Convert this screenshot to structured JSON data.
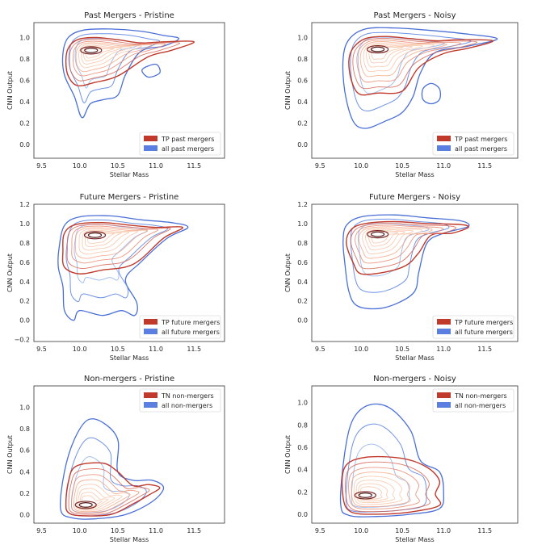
{
  "colors": {
    "tp_red": "#c0392b",
    "all_blue": "#5b7fe0",
    "red_levels": [
      "#b2182b",
      "#d6604d",
      "#e8866c",
      "#f4a582",
      "#f7c4a8"
    ],
    "blue_levels": [
      "#4a6fd6",
      "#6f93e6",
      "#a3bff0"
    ],
    "center_dark": "#4d1a1a"
  },
  "chart_data": [
    {
      "type": "contour",
      "title": "Past Mergers - Pristine",
      "xlabel": "Stellar Mass",
      "ylabel": "CNN Output",
      "xlim": [
        9.4,
        11.9
      ],
      "ylim": [
        -0.13,
        1.14
      ],
      "xticks": [
        "9.5",
        "10.0",
        "10.5",
        "11.0",
        "11.5"
      ],
      "xtick_values": [
        9.5,
        10.0,
        10.5,
        11.0,
        11.5
      ],
      "yticks": [
        "0.0",
        "0.2",
        "0.4",
        "0.6",
        "0.8",
        "1.0"
      ],
      "ytick_values": [
        0.0,
        0.2,
        0.4,
        0.6,
        0.8,
        1.0
      ],
      "legend_position": "lower-right",
      "legend": [
        "TP past mergers",
        "all past mergers"
      ],
      "peak": {
        "x": 10.15,
        "y": 0.88
      },
      "red_outer": [
        [
          9.82,
          0.78
        ],
        [
          9.85,
          0.9
        ],
        [
          9.97,
          0.98
        ],
        [
          10.2,
          1.0
        ],
        [
          10.5,
          0.98
        ],
        [
          10.8,
          0.95
        ],
        [
          11.1,
          0.96
        ],
        [
          11.5,
          0.96
        ],
        [
          11.2,
          0.88
        ],
        [
          10.9,
          0.82
        ],
        [
          10.5,
          0.64
        ],
        [
          10.2,
          0.58
        ],
        [
          9.97,
          0.55
        ],
        [
          9.85,
          0.64
        ]
      ],
      "blue_outer": [
        [
          9.78,
          0.85
        ],
        [
          9.85,
          1.0
        ],
        [
          10.05,
          1.07
        ],
        [
          10.4,
          1.08
        ],
        [
          10.8,
          1.06
        ],
        [
          11.1,
          1.02
        ],
        [
          11.3,
          0.99
        ],
        [
          11.1,
          0.92
        ],
        [
          10.8,
          0.87
        ],
        [
          10.6,
          0.65
        ],
        [
          10.5,
          0.46
        ],
        [
          10.32,
          0.42
        ],
        [
          10.14,
          0.38
        ],
        [
          10.03,
          0.25
        ],
        [
          9.93,
          0.45
        ],
        [
          9.8,
          0.65
        ]
      ],
      "blue_extra": [
        [
          11.0,
          0.75
        ],
        [
          11.05,
          0.67
        ],
        [
          10.9,
          0.63
        ],
        [
          10.82,
          0.7
        ]
      ]
    },
    {
      "type": "contour",
      "title": "Past Mergers - Noisy",
      "xlabel": "Stellar Mass",
      "ylabel": "CNN Output",
      "xlim": [
        9.4,
        11.9
      ],
      "ylim": [
        -0.13,
        1.14
      ],
      "xticks": [
        "9.5",
        "10.0",
        "10.5",
        "11.0",
        "11.5"
      ],
      "xtick_values": [
        9.5,
        10.0,
        10.5,
        11.0,
        11.5
      ],
      "yticks": [
        "0.0",
        "0.2",
        "0.4",
        "0.6",
        "0.8",
        "1.0"
      ],
      "ytick_values": [
        0.0,
        0.2,
        0.4,
        0.6,
        0.8,
        1.0
      ],
      "legend_position": "lower-right",
      "legend": [
        "TP past mergers",
        "all past mergers"
      ],
      "peak": {
        "x": 10.2,
        "y": 0.89
      },
      "red_outer": [
        [
          9.85,
          0.78
        ],
        [
          9.9,
          0.9
        ],
        [
          10.05,
          0.99
        ],
        [
          10.3,
          1.01
        ],
        [
          10.6,
          0.99
        ],
        [
          10.9,
          0.97
        ],
        [
          11.2,
          0.98
        ],
        [
          11.6,
          0.97
        ],
        [
          11.3,
          0.9
        ],
        [
          11.0,
          0.85
        ],
        [
          10.7,
          0.72
        ],
        [
          10.5,
          0.5
        ],
        [
          10.2,
          0.48
        ],
        [
          9.98,
          0.47
        ],
        [
          9.88,
          0.6
        ]
      ],
      "blue_outer": [
        [
          9.78,
          0.8
        ],
        [
          9.85,
          0.98
        ],
        [
          10.05,
          1.08
        ],
        [
          10.4,
          1.09
        ],
        [
          10.8,
          1.07
        ],
        [
          11.2,
          1.04
        ],
        [
          11.65,
          0.99
        ],
        [
          11.3,
          0.92
        ],
        [
          10.9,
          0.86
        ],
        [
          10.72,
          0.67
        ],
        [
          10.63,
          0.45
        ],
        [
          10.5,
          0.3
        ],
        [
          10.3,
          0.22
        ],
        [
          10.05,
          0.15
        ],
        [
          9.9,
          0.22
        ],
        [
          9.8,
          0.5
        ]
      ],
      "blue_extra": [
        [
          10.85,
          0.57
        ],
        [
          10.95,
          0.52
        ],
        [
          10.95,
          0.42
        ],
        [
          10.85,
          0.38
        ],
        [
          10.75,
          0.42
        ],
        [
          10.75,
          0.52
        ]
      ]
    },
    {
      "type": "contour",
      "title": "Future Mergers - Pristine",
      "xlabel": "Stellar Mass",
      "ylabel": "CNN Output",
      "xlim": [
        9.4,
        11.9
      ],
      "ylim": [
        -0.22,
        1.2
      ],
      "xticks": [
        "9.5",
        "10.0",
        "10.5",
        "11.0",
        "11.5"
      ],
      "xtick_values": [
        9.5,
        10.0,
        10.5,
        11.0,
        11.5
      ],
      "yticks": [
        "−0.2",
        "0.0",
        "0.2",
        "0.4",
        "0.6",
        "0.8",
        "1.0",
        "1.2"
      ],
      "ytick_values": [
        -0.2,
        0.0,
        0.2,
        0.4,
        0.6,
        0.8,
        1.0,
        1.2
      ],
      "legend_position": "lower-right",
      "legend": [
        "TP future mergers",
        "all future mergers"
      ],
      "peak": {
        "x": 10.2,
        "y": 0.88
      },
      "red_outer": [
        [
          9.78,
          0.72
        ],
        [
          9.8,
          0.9
        ],
        [
          9.95,
          0.99
        ],
        [
          10.3,
          1.01
        ],
        [
          10.7,
          0.98
        ],
        [
          11.0,
          0.96
        ],
        [
          11.35,
          0.96
        ],
        [
          11.1,
          0.85
        ],
        [
          10.8,
          0.63
        ],
        [
          10.6,
          0.55
        ],
        [
          10.3,
          0.52
        ],
        [
          10.0,
          0.48
        ],
        [
          9.8,
          0.55
        ]
      ],
      "blue_outer": [
        [
          9.73,
          0.75
        ],
        [
          9.8,
          0.98
        ],
        [
          10.0,
          1.07
        ],
        [
          10.4,
          1.08
        ],
        [
          10.8,
          1.04
        ],
        [
          11.2,
          1.01
        ],
        [
          11.42,
          0.96
        ],
        [
          11.15,
          0.85
        ],
        [
          10.8,
          0.6
        ],
        [
          10.6,
          0.42
        ],
        [
          10.75,
          0.18
        ],
        [
          10.72,
          0.05
        ],
        [
          10.55,
          0.1
        ],
        [
          10.3,
          0.05
        ],
        [
          10.0,
          0.1
        ],
        [
          9.92,
          0.0
        ],
        [
          9.8,
          0.1
        ],
        [
          9.78,
          0.35
        ],
        [
          9.72,
          0.55
        ]
      ],
      "blue_extra": []
    },
    {
      "type": "contour",
      "title": "Future Mergers - Noisy",
      "xlabel": "Stellar Mass",
      "ylabel": "CNN Output",
      "xlim": [
        9.4,
        11.9
      ],
      "ylim": [
        -0.22,
        1.2
      ],
      "xticks": [
        "9.5",
        "10.0",
        "10.5",
        "11.0",
        "11.5"
      ],
      "xtick_values": [
        9.5,
        10.0,
        10.5,
        11.0,
        11.5
      ],
      "yticks": [
        "0.0",
        "0.2",
        "0.4",
        "0.6",
        "0.8",
        "1.0",
        "1.2"
      ],
      "ytick_values": [
        0.0,
        0.2,
        0.4,
        0.6,
        0.8,
        1.0,
        1.2
      ],
      "legend_position": "lower-right",
      "legend": [
        "TP future mergers",
        "all future mergers"
      ],
      "peak": {
        "x": 10.2,
        "y": 0.89
      },
      "red_outer": [
        [
          9.82,
          0.8
        ],
        [
          9.88,
          0.94
        ],
        [
          10.05,
          1.0
        ],
        [
          10.4,
          1.02
        ],
        [
          10.8,
          1.0
        ],
        [
          11.2,
          0.99
        ],
        [
          11.3,
          0.96
        ],
        [
          11.1,
          0.9
        ],
        [
          10.85,
          0.88
        ],
        [
          10.7,
          0.7
        ],
        [
          10.55,
          0.57
        ],
        [
          10.3,
          0.5
        ],
        [
          10.0,
          0.48
        ],
        [
          9.9,
          0.6
        ]
      ],
      "blue_outer": [
        [
          9.78,
          0.82
        ],
        [
          9.82,
          0.98
        ],
        [
          10.0,
          1.07
        ],
        [
          10.4,
          1.09
        ],
        [
          10.8,
          1.06
        ],
        [
          11.2,
          1.03
        ],
        [
          11.3,
          0.97
        ],
        [
          11.0,
          0.9
        ],
        [
          10.8,
          0.8
        ],
        [
          10.7,
          0.5
        ],
        [
          10.65,
          0.3
        ],
        [
          10.45,
          0.18
        ],
        [
          10.2,
          0.12
        ],
        [
          9.95,
          0.15
        ],
        [
          9.85,
          0.3
        ],
        [
          9.8,
          0.6
        ]
      ],
      "blue_extra": []
    },
    {
      "type": "contour",
      "title": "Non-mergers - Pristine",
      "xlabel": "Stellar Mass",
      "ylabel": "CNN Output",
      "xlim": [
        9.4,
        11.9
      ],
      "ylim": [
        -0.08,
        1.2
      ],
      "xticks": [
        "9.5",
        "10.0",
        "10.5",
        "11.0",
        "11.5"
      ],
      "xtick_values": [
        9.5,
        10.0,
        10.5,
        11.0,
        11.5
      ],
      "yticks": [
        "0.0",
        "0.2",
        "0.4",
        "0.6",
        "0.8",
        "1.0"
      ],
      "ytick_values": [
        0.0,
        0.2,
        0.4,
        0.6,
        0.8,
        1.0
      ],
      "legend_position": "upper-right",
      "legend": [
        "TN non-mergers",
        "all non-mergers"
      ],
      "peak": {
        "x": 10.08,
        "y": 0.09
      },
      "red_outer": [
        [
          9.82,
          0.1
        ],
        [
          9.85,
          0.3
        ],
        [
          9.95,
          0.45
        ],
        [
          10.3,
          0.48
        ],
        [
          10.5,
          0.4
        ],
        [
          10.7,
          0.27
        ],
        [
          10.9,
          0.28
        ],
        [
          11.05,
          0.25
        ],
        [
          10.9,
          0.18
        ],
        [
          10.7,
          0.1
        ],
        [
          10.4,
          0.0
        ],
        [
          10.0,
          -0.01
        ],
        [
          9.85,
          0.02
        ]
      ],
      "blue_outer": [
        [
          9.75,
          0.05
        ],
        [
          9.8,
          0.4
        ],
        [
          9.93,
          0.7
        ],
        [
          10.1,
          0.88
        ],
        [
          10.3,
          0.86
        ],
        [
          10.5,
          0.7
        ],
        [
          10.5,
          0.4
        ],
        [
          10.7,
          0.32
        ],
        [
          10.95,
          0.32
        ],
        [
          11.1,
          0.25
        ],
        [
          10.95,
          0.12
        ],
        [
          10.6,
          0.0
        ],
        [
          10.2,
          -0.04
        ],
        [
          9.9,
          -0.03
        ]
      ],
      "blue_extra": []
    },
    {
      "type": "contour",
      "title": "Non-mergers - Noisy",
      "xlabel": "Stellar Mass",
      "ylabel": "CNN Output",
      "xlim": [
        9.4,
        11.9
      ],
      "ylim": [
        -0.08,
        1.15
      ],
      "xticks": [
        "9.5",
        "10.0",
        "10.5",
        "11.0",
        "11.5"
      ],
      "xtick_values": [
        9.5,
        10.0,
        10.5,
        11.0,
        11.5
      ],
      "yticks": [
        "0.0",
        "0.2",
        "0.4",
        "0.6",
        "0.8",
        "1.0"
      ],
      "ytick_values": [
        0.0,
        0.2,
        0.4,
        0.6,
        0.8,
        1.0
      ],
      "legend_position": "upper-right",
      "legend": [
        "TN non-mergers",
        "all non-mergers"
      ],
      "peak": {
        "x": 10.05,
        "y": 0.17
      },
      "red_outer": [
        [
          9.78,
          0.15
        ],
        [
          9.8,
          0.42
        ],
        [
          10.05,
          0.51
        ],
        [
          10.5,
          0.5
        ],
        [
          10.8,
          0.42
        ],
        [
          10.95,
          0.3
        ],
        [
          10.9,
          0.18
        ],
        [
          10.95,
          0.08
        ],
        [
          10.6,
          0.02
        ],
        [
          10.2,
          0.0
        ],
        [
          9.88,
          0.02
        ]
      ],
      "blue_outer": [
        [
          9.75,
          0.1
        ],
        [
          9.8,
          0.55
        ],
        [
          9.9,
          0.85
        ],
        [
          10.1,
          0.98
        ],
        [
          10.35,
          0.95
        ],
        [
          10.6,
          0.75
        ],
        [
          10.72,
          0.48
        ],
        [
          10.95,
          0.38
        ],
        [
          11.0,
          0.2
        ],
        [
          10.95,
          0.05
        ],
        [
          10.6,
          0.0
        ],
        [
          10.2,
          -0.02
        ],
        [
          9.85,
          -0.01
        ]
      ],
      "blue_extra": []
    }
  ]
}
